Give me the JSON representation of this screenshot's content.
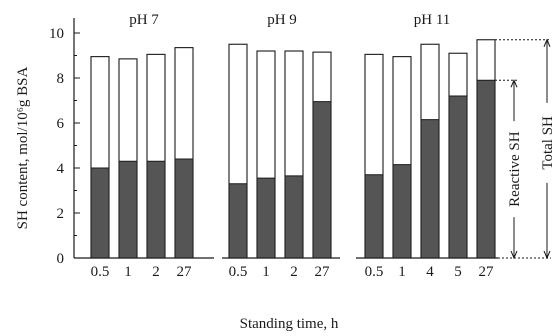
{
  "chart_data": {
    "type": "bar",
    "ylabel": "SH content, mol/10⁶g BSA",
    "xlabel": "Standing time, h",
    "ylim": [
      0,
      10
    ],
    "yticks": [
      0,
      2,
      4,
      6,
      8,
      10
    ],
    "groups": [
      {
        "label": "pH 7",
        "categories": [
          "0.5",
          "1",
          "2",
          "27"
        ],
        "series": [
          {
            "name": "Total SH",
            "values": [
              8.95,
              8.85,
              9.05,
              9.35
            ]
          },
          {
            "name": "Reactive SH",
            "values": [
              4.0,
              4.3,
              4.3,
              4.4
            ]
          }
        ]
      },
      {
        "label": "pH 9",
        "categories": [
          "0.5",
          "1",
          "2",
          "27"
        ],
        "series": [
          {
            "name": "Total SH",
            "values": [
              9.5,
              9.2,
              9.2,
              9.15
            ]
          },
          {
            "name": "Reactive SH",
            "values": [
              3.3,
              3.55,
              3.65,
              6.95
            ]
          }
        ]
      },
      {
        "label": "pH 11",
        "categories": [
          "0.5",
          "1",
          "4",
          "5",
          "27"
        ],
        "series": [
          {
            "name": "Total SH",
            "values": [
              9.05,
              8.95,
              9.5,
              9.1,
              9.7
            ]
          },
          {
            "name": "Reactive SH",
            "values": [
              3.7,
              4.15,
              6.15,
              7.2,
              7.9
            ]
          }
        ]
      }
    ],
    "annotations": [
      "Reactive SH",
      "Total SH"
    ]
  }
}
